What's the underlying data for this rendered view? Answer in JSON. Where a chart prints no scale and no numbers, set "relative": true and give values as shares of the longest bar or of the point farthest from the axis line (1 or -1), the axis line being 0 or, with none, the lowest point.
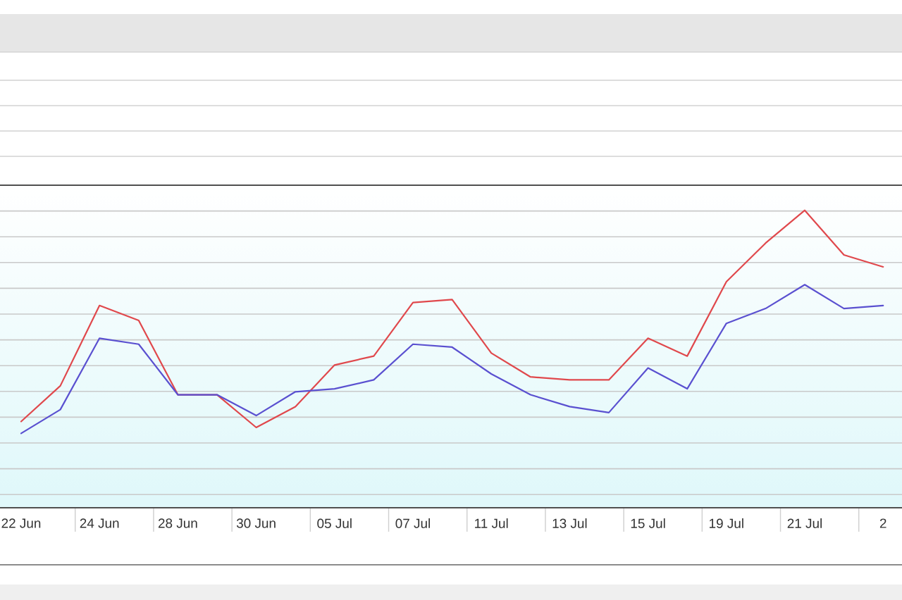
{
  "chart_data": {
    "type": "line",
    "relative": true,
    "categories": [
      "22 Jun",
      null,
      "24 Jun",
      null,
      "28 Jun",
      null,
      "30 Jun",
      null,
      "05 Jul",
      null,
      "07 Jul",
      null,
      "11 Jul",
      null,
      "13 Jul",
      null,
      "15 Jul",
      null,
      "19 Jul",
      null,
      "21 Jul",
      null,
      "2"
    ],
    "series": [
      {
        "color": "#e0484c",
        "values": [
          0.29,
          0.41,
          0.68,
          0.63,
          0.38,
          0.38,
          0.27,
          0.34,
          0.48,
          0.51,
          0.69,
          0.7,
          0.52,
          0.44,
          0.43,
          0.43,
          0.57,
          0.51,
          0.76,
          0.89,
          1.0,
          0.85,
          0.81
        ]
      },
      {
        "color": "#5a50d0",
        "values": [
          0.25,
          0.33,
          0.57,
          0.55,
          0.38,
          0.38,
          0.31,
          0.39,
          0.4,
          0.43,
          0.55,
          0.54,
          0.45,
          0.38,
          0.34,
          0.32,
          0.47,
          0.4,
          0.62,
          0.67,
          0.75,
          0.67,
          0.68
        ]
      }
    ],
    "grid": "y",
    "tick_labels": "x"
  }
}
